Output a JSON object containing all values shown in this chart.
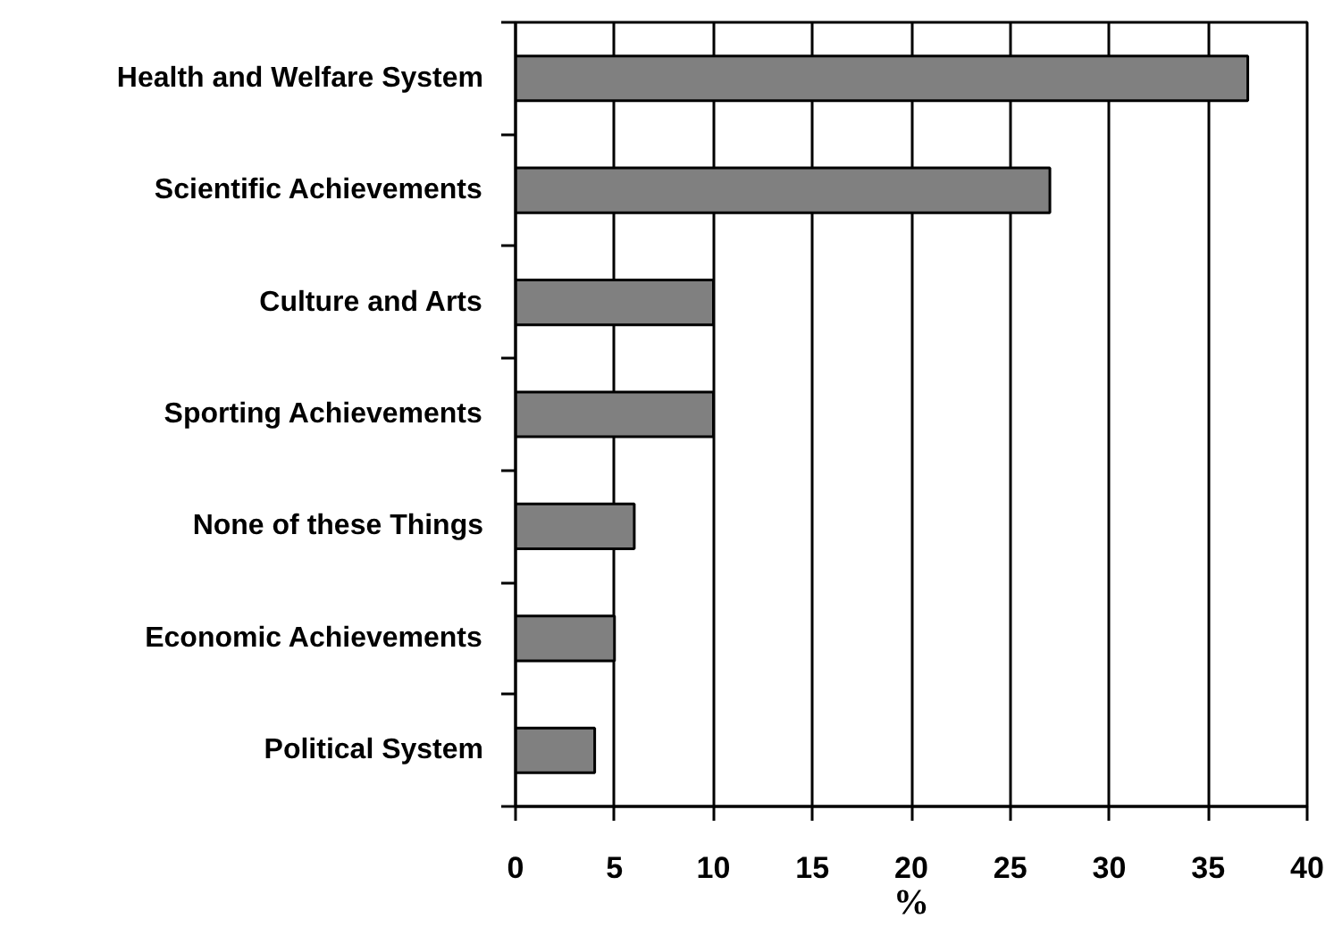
{
  "chart_data": {
    "type": "bar",
    "orientation": "horizontal",
    "categories": [
      "Health and Welfare System",
      "Scientific Achievements",
      "Culture and Arts",
      "Sporting Achievements",
      "None of these Things",
      "Economic Achievements",
      "Political System"
    ],
    "values": [
      37,
      27,
      10,
      10,
      6,
      5,
      4
    ],
    "color": "#808080",
    "xlabel": "%",
    "xlim": [
      0,
      40
    ],
    "xticks": [
      0,
      5,
      10,
      15,
      20,
      25,
      30,
      35,
      40
    ],
    "grid": "x"
  }
}
